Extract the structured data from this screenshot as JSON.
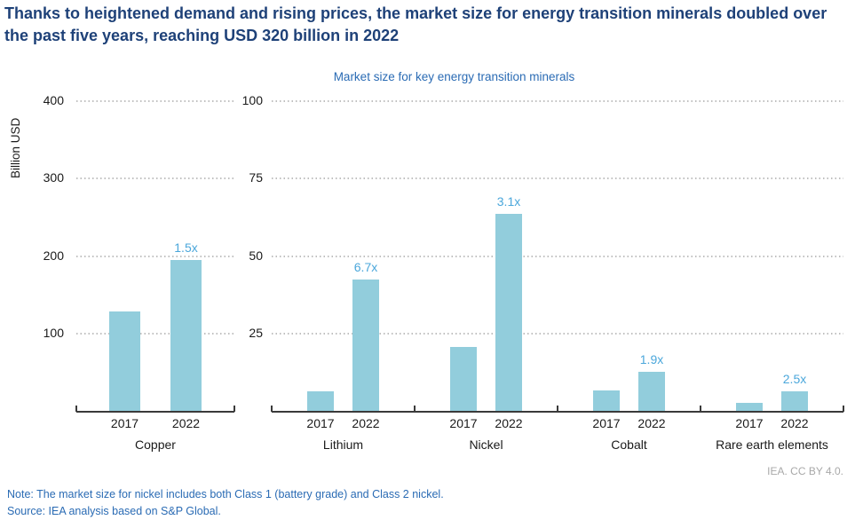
{
  "header": {
    "title": "Thanks to heightened demand and rising prices, the market size for energy transition minerals doubled over the past five years, reaching USD 320 billion in 2022"
  },
  "footer": {
    "credit": "IEA. CC BY 4.0.",
    "note": "Note: The market size for nickel includes both Class 1 (battery grade) and Class 2 nickel.",
    "source": "Source: IEA analysis based on S&P Global."
  },
  "chart_data": {
    "type": "bar",
    "title": "Market size for key energy transition minerals",
    "ylabel": "Billion USD",
    "grid": "dotted horizontal",
    "legend": null,
    "years": [
      "2017",
      "2022"
    ],
    "panels": [
      {
        "ylim": [
          0,
          400
        ],
        "yticks": [
          100,
          200,
          300,
          400
        ],
        "groups": [
          {
            "label": "Copper",
            "values": [
              128,
              195
            ],
            "multiplier": "1.5x"
          }
        ]
      },
      {
        "ylim": [
          0,
          100
        ],
        "yticks": [
          25,
          50,
          75,
          100
        ],
        "groups": [
          {
            "label": "Lithium",
            "values": [
              6.3,
              42.5
            ],
            "multiplier": "6.7x"
          },
          {
            "label": "Nickel",
            "values": [
              20.5,
              63.5
            ],
            "multiplier": "3.1x"
          },
          {
            "label": "Cobalt",
            "values": [
              6.7,
              12.7
            ],
            "multiplier": "1.9x"
          },
          {
            "label": "Rare earth elements",
            "values": [
              2.6,
              6.4
            ],
            "multiplier": "2.5x"
          }
        ]
      }
    ],
    "colors": {
      "bar": "#92CDDC",
      "multiplier_label": "#4BA7DB",
      "title_navy": "#1E4178",
      "text_blue": "#2A6BB4",
      "gridline": "#BFBFBF",
      "axis": "#3A3A3A",
      "credit_gray": "#A8A8A8"
    }
  }
}
